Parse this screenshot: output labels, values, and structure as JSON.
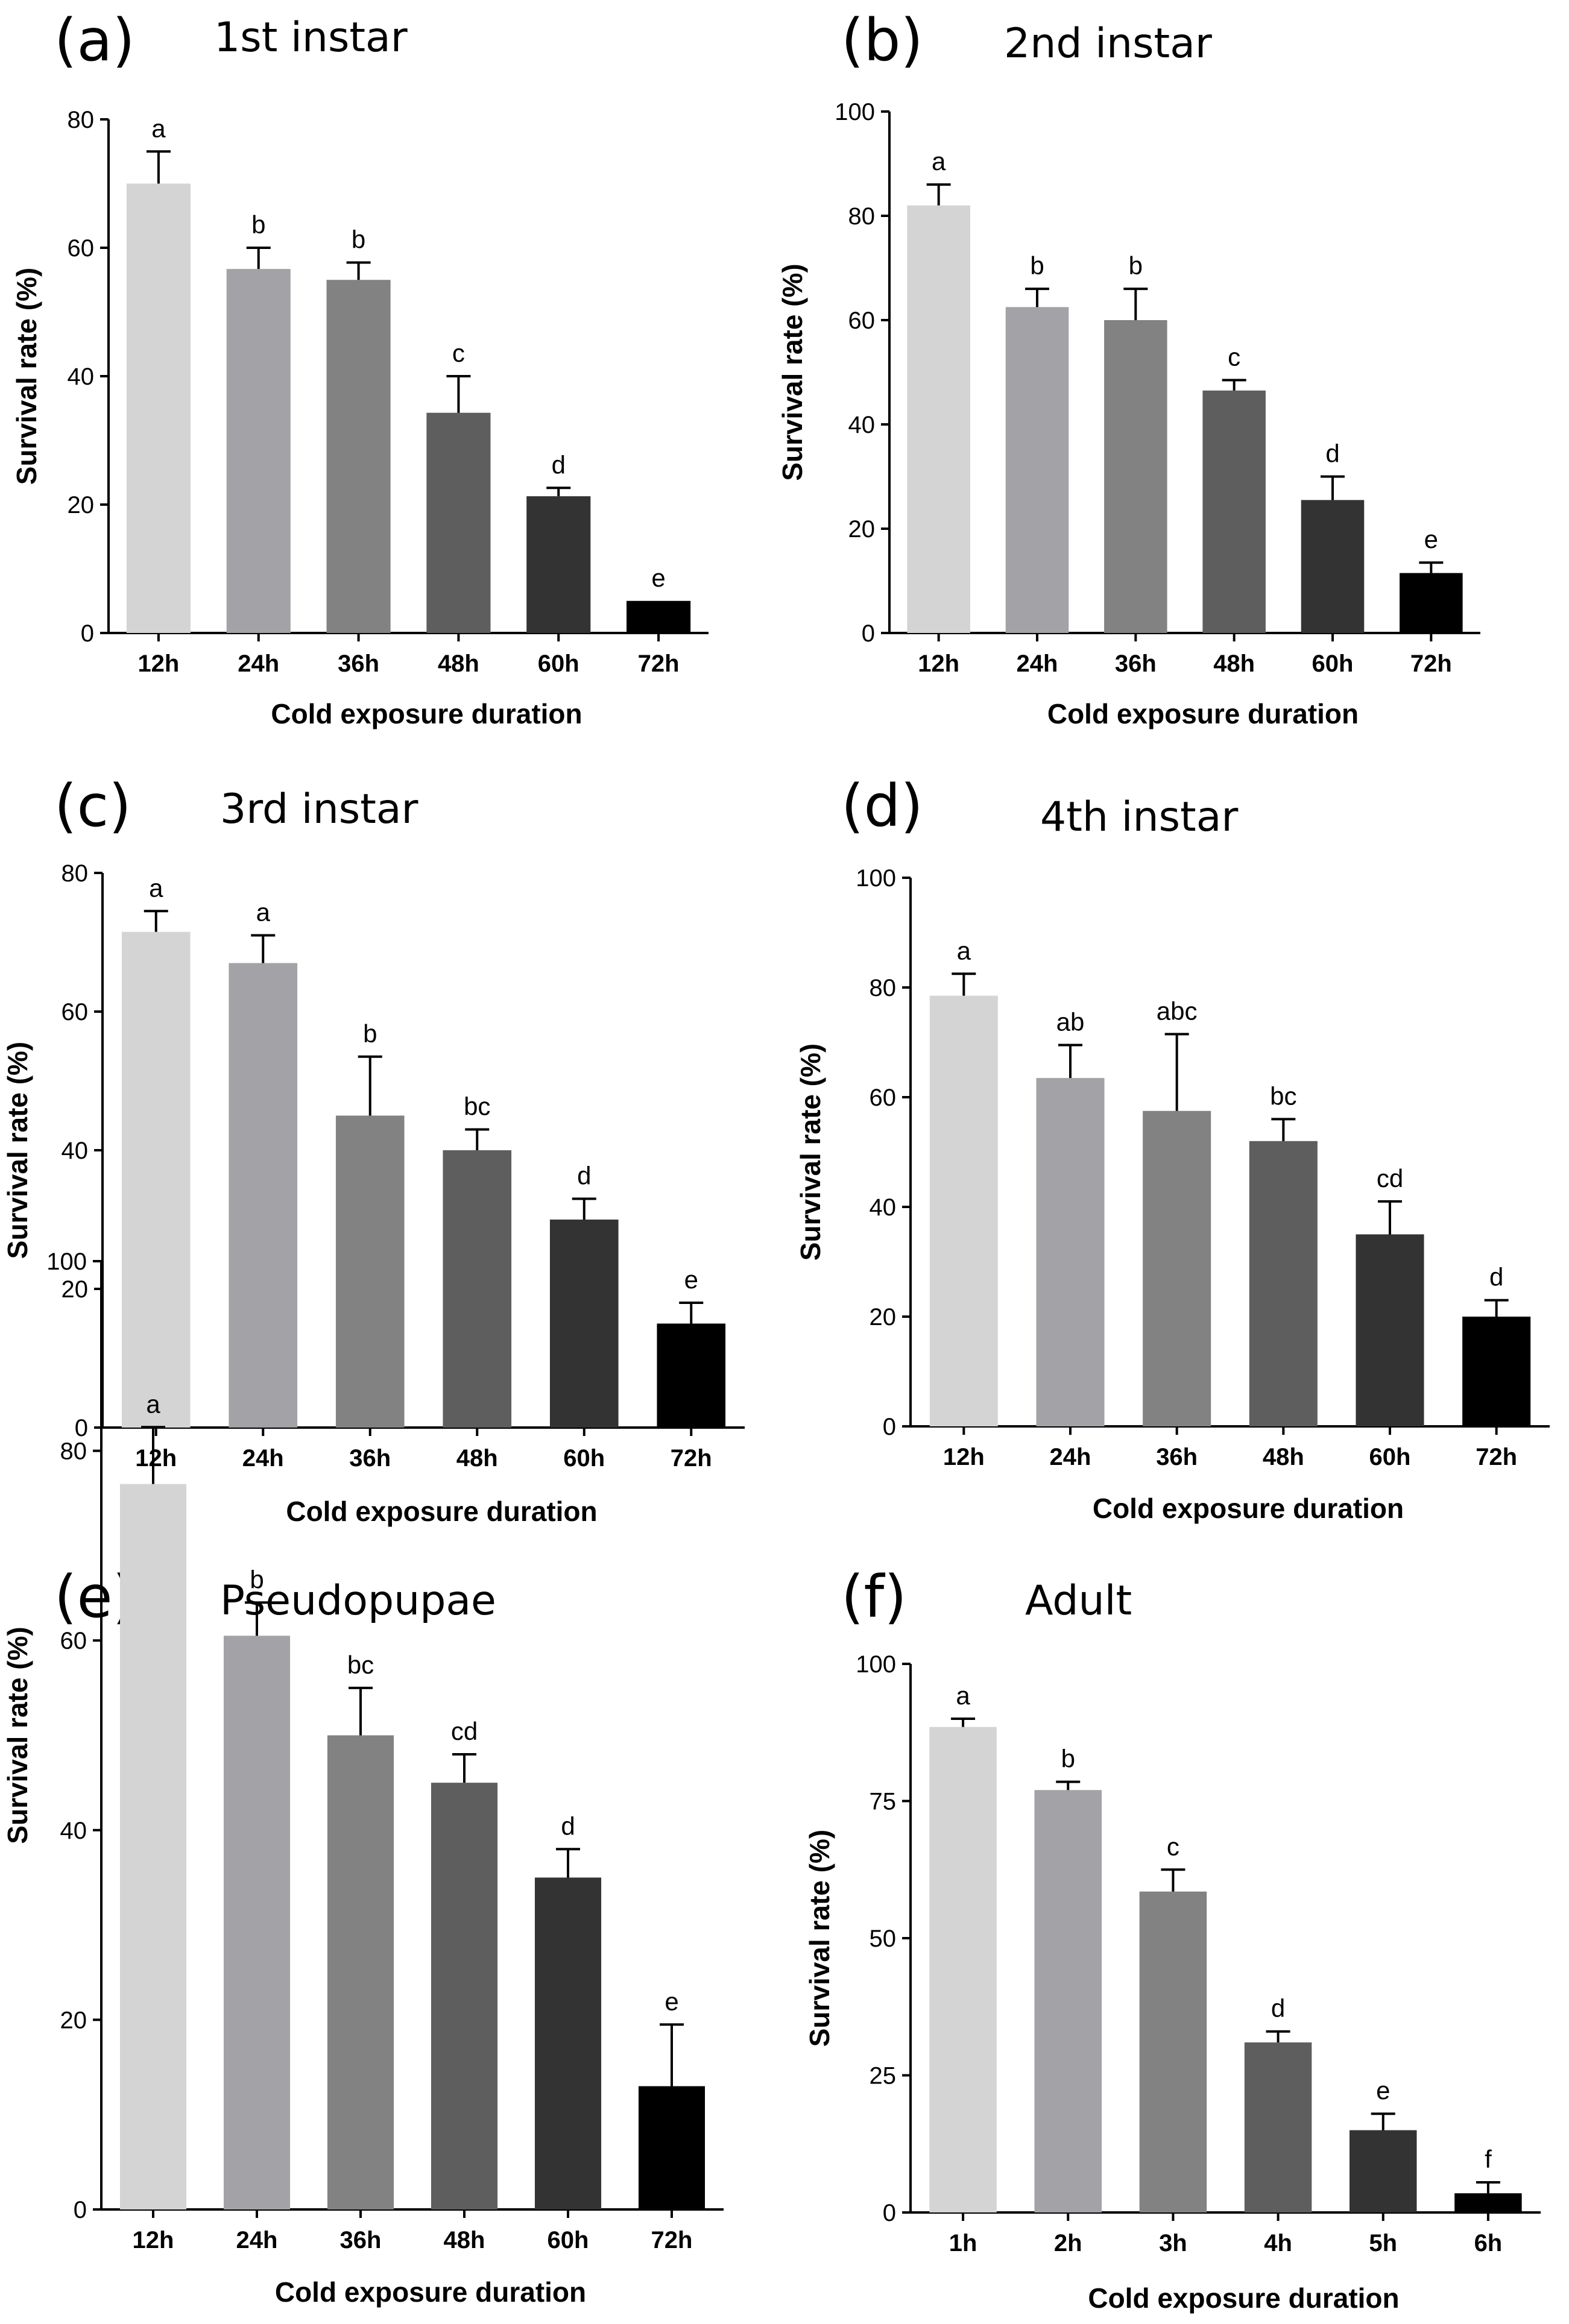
{
  "figure": {
    "bar_colors": [
      "#d4d4d4",
      "#a2a2a7",
      "#828282",
      "#5e5e5e",
      "#333333",
      "#000000"
    ]
  },
  "chart_data": [
    {
      "type": "bar",
      "panel": "(a)",
      "title": "1st instar",
      "xlabel": "Cold exposure duration",
      "ylabel": "Survival rate (%)",
      "ylim": [
        0,
        80
      ],
      "yticks": [
        0,
        20,
        40,
        60,
        80
      ],
      "categories": [
        "12h",
        "24h",
        "36h",
        "48h",
        "60h",
        "72h"
      ],
      "values": [
        70,
        56.7,
        55,
        34.3,
        21.3,
        5
      ],
      "errors": [
        5,
        3.3,
        2.7,
        5.7,
        1.3,
        0
      ],
      "letters": [
        "a",
        "b",
        "b",
        "c",
        "d",
        "e"
      ]
    },
    {
      "type": "bar",
      "panel": "(b)",
      "title": "2nd instar",
      "xlabel": "Cold exposure duration",
      "ylabel": "Survival rate (%)",
      "ylim": [
        0,
        100
      ],
      "yticks": [
        0,
        20,
        40,
        60,
        80,
        100
      ],
      "categories": [
        "12h",
        "24h",
        "36h",
        "48h",
        "60h",
        "72h"
      ],
      "values": [
        82,
        62.5,
        60,
        46.5,
        25.5,
        11.5
      ],
      "errors": [
        4,
        3.5,
        6,
        2,
        4.5,
        2
      ],
      "letters": [
        "a",
        "b",
        "b",
        "c",
        "d",
        "e"
      ]
    },
    {
      "type": "bar",
      "panel": "(c)",
      "title": "3rd instar",
      "xlabel": "Cold exposure duration",
      "ylabel": "Survival rate (%)",
      "ylim": [
        0,
        80
      ],
      "yticks": [
        0,
        20,
        40,
        60,
        80
      ],
      "categories": [
        "12h",
        "24h",
        "36h",
        "48h",
        "60h",
        "72h"
      ],
      "values": [
        71.5,
        67,
        45,
        40,
        30,
        15
      ],
      "errors": [
        3,
        4,
        8.5,
        3,
        3,
        3
      ],
      "letters": [
        "a",
        "a",
        "b",
        "bc",
        "d",
        "e"
      ]
    },
    {
      "type": "bar",
      "panel": "(d)",
      "title": "4th instar",
      "xlabel": "Cold exposure duration",
      "ylabel": "Survival rate (%)",
      "ylim": [
        0,
        100
      ],
      "yticks": [
        0,
        20,
        40,
        60,
        80,
        100
      ],
      "categories": [
        "12h",
        "24h",
        "36h",
        "48h",
        "60h",
        "72h"
      ],
      "values": [
        78.5,
        63.5,
        57.5,
        52,
        35,
        20
      ],
      "errors": [
        4,
        6,
        14,
        4,
        6,
        3
      ],
      "letters": [
        "a",
        "ab",
        "abc",
        "bc",
        "cd",
        "d"
      ]
    },
    {
      "type": "bar",
      "panel": "(e)",
      "title": "Pseudopupae",
      "xlabel": "Cold exposure duration",
      "ylabel": "Survival rate (%)",
      "ylim": [
        0,
        100
      ],
      "yticks": [
        0,
        20,
        40,
        60,
        80,
        100
      ],
      "categories": [
        "12h",
        "24h",
        "36h",
        "48h",
        "60h",
        "72h"
      ],
      "values": [
        76.5,
        60.5,
        50,
        45,
        35,
        13
      ],
      "errors": [
        6,
        3.5,
        5,
        3,
        3,
        6.5
      ],
      "letters": [
        "a",
        "b",
        "bc",
        "cd",
        "d",
        "e"
      ]
    },
    {
      "type": "bar",
      "panel": "(f)",
      "title": "Adult",
      "xlabel": "Cold exposure duration",
      "ylabel": "Survival rate (%)",
      "ylim": [
        0,
        100
      ],
      "yticks": [
        0,
        25,
        50,
        75,
        100
      ],
      "categories": [
        "1h",
        "2h",
        "3h",
        "4h",
        "5h",
        "6h"
      ],
      "values": [
        88.5,
        77,
        58.5,
        31,
        15,
        3.5
      ],
      "errors": [
        1.5,
        1.5,
        4,
        2,
        3,
        2
      ],
      "letters": [
        "a",
        "b",
        "c",
        "d",
        "e",
        "f"
      ]
    }
  ]
}
